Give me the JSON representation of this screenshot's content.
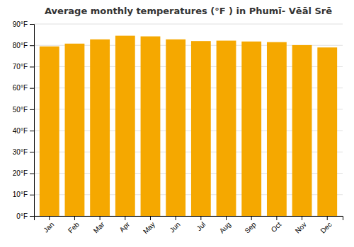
{
  "chart_data": {
    "type": "bar",
    "title": "Average monthly temperatures (°F ) in Phumī- Vēāl Srē",
    "categories": [
      "Jan",
      "Feb",
      "Mar",
      "Apr",
      "May",
      "Jun",
      "Jul",
      "Aug",
      "Sep",
      "Oct",
      "Nov",
      "Dec"
    ],
    "values": [
      79.5,
      80.8,
      82.8,
      84.5,
      84.2,
      82.8,
      82.0,
      82.2,
      81.8,
      81.5,
      80.1,
      79.0
    ],
    "color": "#F5A800",
    "ylim": [
      0,
      90
    ],
    "yticks": [
      {
        "value": 0,
        "label": "0°F"
      },
      {
        "value": 10,
        "label": "10°F"
      },
      {
        "value": 20,
        "label": "20°F"
      },
      {
        "value": 30,
        "label": "30°F"
      },
      {
        "value": 40,
        "label": "40°F"
      },
      {
        "value": 50,
        "label": "50°F"
      },
      {
        "value": 60,
        "label": "60°F"
      },
      {
        "value": 70,
        "label": "70°F"
      },
      {
        "value": 80,
        "label": "80°F"
      },
      {
        "value": 90,
        "label": "90°F"
      }
    ],
    "grid": true
  }
}
